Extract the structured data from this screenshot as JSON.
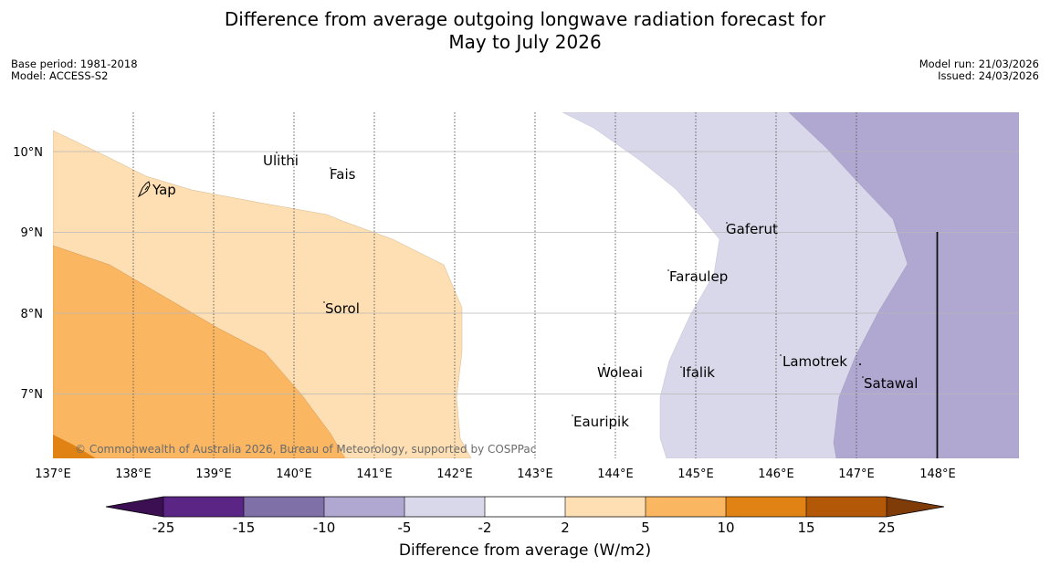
{
  "title": {
    "line1": "Difference from average outgoing longwave radiation forecast for",
    "line2": "May to July 2026"
  },
  "meta_left": {
    "base_period": "Base period: 1981-2018",
    "model": "Model: ACCESS-S2"
  },
  "meta_right": {
    "model_run": "Model run: 21/03/2026",
    "issued": "Issued: 24/03/2026"
  },
  "map": {
    "lon_ticks": [
      "137°E",
      "138°E",
      "139°E",
      "140°E",
      "141°E",
      "142°E",
      "143°E",
      "144°E",
      "145°E",
      "146°E",
      "147°E",
      "148°E"
    ],
    "lat_ticks": [
      "10°N",
      "9°N",
      "8°N",
      "7°N"
    ],
    "places": [
      {
        "name": "Yap",
        "lon": 138.2,
        "lat": 9.5
      },
      {
        "name": "Ulithi",
        "lon": 139.7,
        "lat": 9.9
      },
      {
        "name": "Fais",
        "lon": 140.5,
        "lat": 9.76
      },
      {
        "name": "Gaferut",
        "lon": 145.38,
        "lat": 9.06
      },
      {
        "name": "Faraulep",
        "lon": 144.6,
        "lat": 8.6
      },
      {
        "name": "Sorol",
        "lon": 140.38,
        "lat": 8.13
      },
      {
        "name": "Woleai",
        "lon": 143.9,
        "lat": 7.36
      },
      {
        "name": "Ifalik",
        "lon": 144.44,
        "lat": 7.25
      },
      {
        "name": "Lamotrek",
        "lon": 146.32,
        "lat": 7.47
      },
      {
        "name": "Satawal",
        "lon": 147.04,
        "lat": 7.35
      },
      {
        "name": "Eauripik",
        "lon": 143.04,
        "lat": 6.68
      }
    ],
    "credit": "© Commonwealth of Australia 2026, Bureau of Meteorology, supported by COSPPac"
  },
  "colorbar": {
    "title": "Difference from average (W/m2)",
    "tick_labels": [
      "-25",
      "-15",
      "-10",
      "-5",
      "-2",
      "2",
      "5",
      "10",
      "15",
      "25"
    ],
    "colors": {
      "below_min": "#3b0f52",
      "n25_n15": "#5a2585",
      "n15_n10": "#7f70a8",
      "n10_n5": "#b0a8d0",
      "n5_n2": "#d8d8ea",
      "n2_p2": "#ffffff",
      "p2_p5": "#fddfb3",
      "p5_p10": "#fbb662",
      "p10_p15": "#e08214",
      "p15_p25": "#b35806",
      "above_max": "#7f3b08"
    }
  }
}
